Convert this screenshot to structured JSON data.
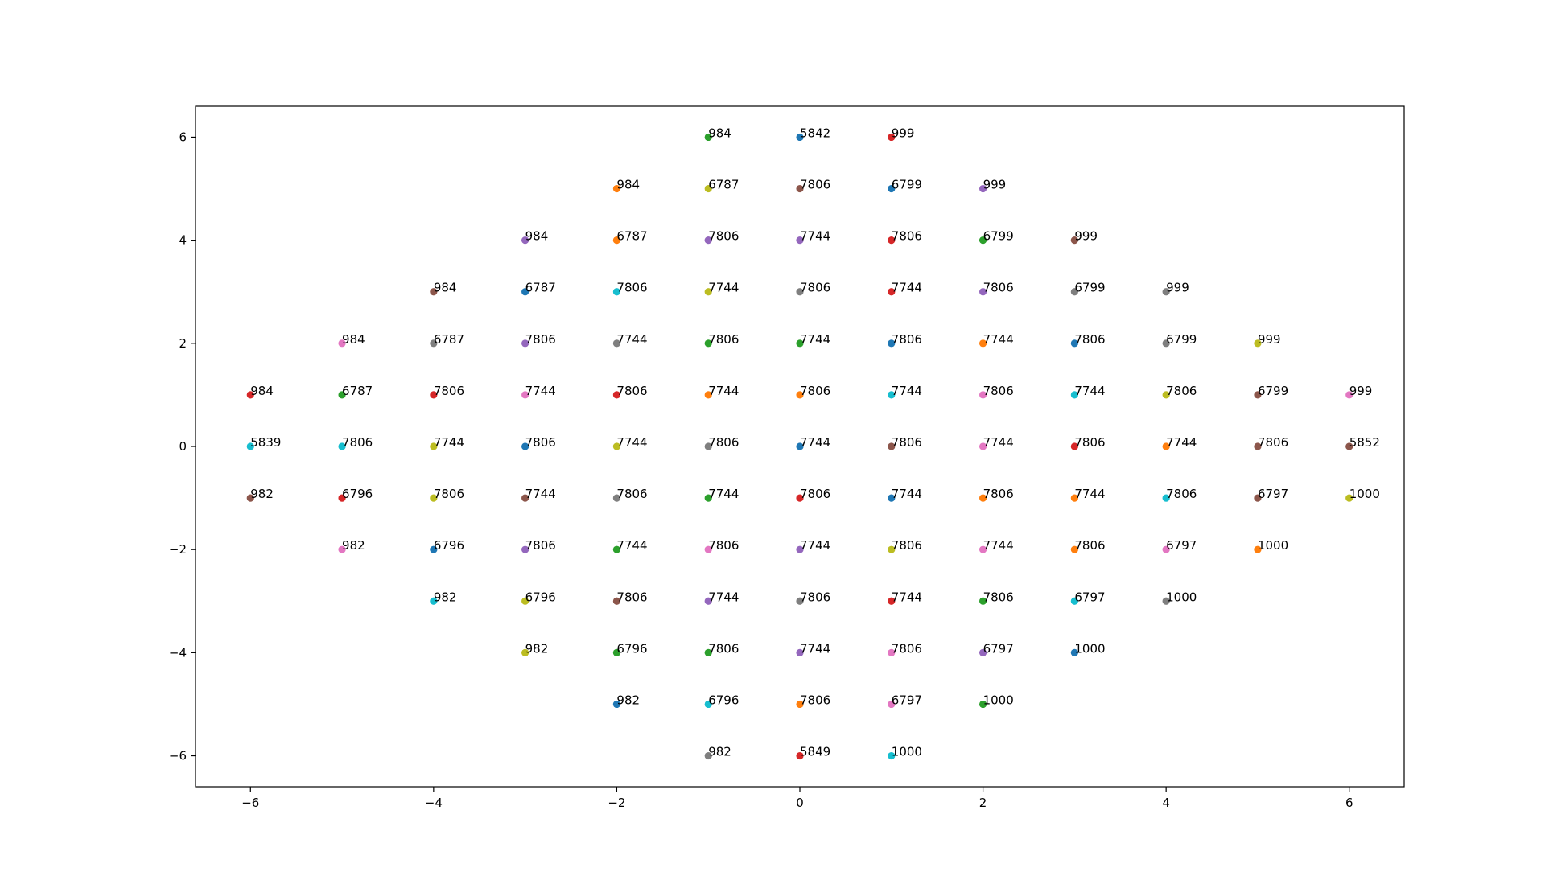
{
  "chart_data": {
    "type": "scatter",
    "title": "",
    "xlabel": "",
    "ylabel": "",
    "xlim": [
      -6.6,
      6.6
    ],
    "ylim": [
      -6.6,
      6.6
    ],
    "xticks": [
      -6,
      -4,
      -2,
      0,
      2,
      4,
      6
    ],
    "yticks": [
      -6,
      -4,
      -2,
      0,
      2,
      4,
      6
    ],
    "xtick_labels": [
      "−6",
      "−4",
      "−2",
      "0",
      "2",
      "4",
      "6"
    ],
    "ytick_labels": [
      "−6",
      "−4",
      "−2",
      "0",
      "2",
      "4",
      "6"
    ],
    "grid": false,
    "legend": "none",
    "palette": [
      "#1f77b4",
      "#ff7f0e",
      "#2ca02c",
      "#d62728",
      "#9467bd",
      "#8c564b",
      "#e377c2",
      "#7f7f7f",
      "#bcbd22",
      "#17becf"
    ],
    "points": [
      {
        "x": -6,
        "y": 1,
        "label": "984",
        "color": "#d62728"
      },
      {
        "x": -6,
        "y": 0,
        "label": "5839",
        "color": "#17becf"
      },
      {
        "x": -6,
        "y": -1,
        "label": "982",
        "color": "#8c564b"
      },
      {
        "x": -5,
        "y": 2,
        "label": "984",
        "color": "#e377c2"
      },
      {
        "x": -5,
        "y": 1,
        "label": "6787",
        "color": "#2ca02c"
      },
      {
        "x": -5,
        "y": 0,
        "label": "7806",
        "color": "#17becf"
      },
      {
        "x": -5,
        "y": -1,
        "label": "6796",
        "color": "#d62728"
      },
      {
        "x": -5,
        "y": -2,
        "label": "982",
        "color": "#e377c2"
      },
      {
        "x": -4,
        "y": 3,
        "label": "984",
        "color": "#8c564b"
      },
      {
        "x": -4,
        "y": 2,
        "label": "6787",
        "color": "#7f7f7f"
      },
      {
        "x": -4,
        "y": 1,
        "label": "7806",
        "color": "#d62728"
      },
      {
        "x": -4,
        "y": 0,
        "label": "7744",
        "color": "#bcbd22"
      },
      {
        "x": -4,
        "y": -1,
        "label": "7806",
        "color": "#bcbd22"
      },
      {
        "x": -4,
        "y": -2,
        "label": "6796",
        "color": "#1f77b4"
      },
      {
        "x": -4,
        "y": -3,
        "label": "982",
        "color": "#17becf"
      },
      {
        "x": -3,
        "y": 4,
        "label": "984",
        "color": "#9467bd"
      },
      {
        "x": -3,
        "y": 3,
        "label": "6787",
        "color": "#1f77b4"
      },
      {
        "x": -3,
        "y": 2,
        "label": "7806",
        "color": "#9467bd"
      },
      {
        "x": -3,
        "y": 1,
        "label": "7744",
        "color": "#e377c2"
      },
      {
        "x": -3,
        "y": 0,
        "label": "7806",
        "color": "#1f77b4"
      },
      {
        "x": -3,
        "y": -1,
        "label": "7744",
        "color": "#8c564b"
      },
      {
        "x": -3,
        "y": -2,
        "label": "7806",
        "color": "#9467bd"
      },
      {
        "x": -3,
        "y": -3,
        "label": "6796",
        "color": "#bcbd22"
      },
      {
        "x": -3,
        "y": -4,
        "label": "982",
        "color": "#bcbd22"
      },
      {
        "x": -2,
        "y": 5,
        "label": "984",
        "color": "#ff7f0e"
      },
      {
        "x": -2,
        "y": 4,
        "label": "6787",
        "color": "#ff7f0e"
      },
      {
        "x": -2,
        "y": 3,
        "label": "7806",
        "color": "#17becf"
      },
      {
        "x": -2,
        "y": 2,
        "label": "7744",
        "color": "#7f7f7f"
      },
      {
        "x": -2,
        "y": 1,
        "label": "7806",
        "color": "#d62728"
      },
      {
        "x": -2,
        "y": 0,
        "label": "7744",
        "color": "#bcbd22"
      },
      {
        "x": -2,
        "y": -1,
        "label": "7806",
        "color": "#7f7f7f"
      },
      {
        "x": -2,
        "y": -2,
        "label": "7744",
        "color": "#2ca02c"
      },
      {
        "x": -2,
        "y": -3,
        "label": "7806",
        "color": "#8c564b"
      },
      {
        "x": -2,
        "y": -4,
        "label": "6796",
        "color": "#2ca02c"
      },
      {
        "x": -2,
        "y": -5,
        "label": "982",
        "color": "#1f77b4"
      },
      {
        "x": -1,
        "y": 6,
        "label": "984",
        "color": "#2ca02c"
      },
      {
        "x": -1,
        "y": 5,
        "label": "6787",
        "color": "#bcbd22"
      },
      {
        "x": -1,
        "y": 4,
        "label": "7806",
        "color": "#9467bd"
      },
      {
        "x": -1,
        "y": 3,
        "label": "7744",
        "color": "#bcbd22"
      },
      {
        "x": -1,
        "y": 2,
        "label": "7806",
        "color": "#2ca02c"
      },
      {
        "x": -1,
        "y": 1,
        "label": "7744",
        "color": "#ff7f0e"
      },
      {
        "x": -1,
        "y": 0,
        "label": "7806",
        "color": "#7f7f7f"
      },
      {
        "x": -1,
        "y": -1,
        "label": "7744",
        "color": "#2ca02c"
      },
      {
        "x": -1,
        "y": -2,
        "label": "7806",
        "color": "#e377c2"
      },
      {
        "x": -1,
        "y": -3,
        "label": "7744",
        "color": "#9467bd"
      },
      {
        "x": -1,
        "y": -4,
        "label": "7806",
        "color": "#2ca02c"
      },
      {
        "x": -1,
        "y": -5,
        "label": "6796",
        "color": "#17becf"
      },
      {
        "x": -1,
        "y": -6,
        "label": "982",
        "color": "#7f7f7f"
      },
      {
        "x": 0,
        "y": 6,
        "label": "5842",
        "color": "#1f77b4"
      },
      {
        "x": 0,
        "y": 5,
        "label": "7806",
        "color": "#8c564b"
      },
      {
        "x": 0,
        "y": 4,
        "label": "7744",
        "color": "#9467bd"
      },
      {
        "x": 0,
        "y": 3,
        "label": "7806",
        "color": "#7f7f7f"
      },
      {
        "x": 0,
        "y": 2,
        "label": "7744",
        "color": "#2ca02c"
      },
      {
        "x": 0,
        "y": 1,
        "label": "7806",
        "color": "#ff7f0e"
      },
      {
        "x": 0,
        "y": 0,
        "label": "7744",
        "color": "#1f77b4"
      },
      {
        "x": 0,
        "y": -1,
        "label": "7806",
        "color": "#d62728"
      },
      {
        "x": 0,
        "y": -2,
        "label": "7744",
        "color": "#9467bd"
      },
      {
        "x": 0,
        "y": -3,
        "label": "7806",
        "color": "#7f7f7f"
      },
      {
        "x": 0,
        "y": -4,
        "label": "7744",
        "color": "#9467bd"
      },
      {
        "x": 0,
        "y": -5,
        "label": "7806",
        "color": "#ff7f0e"
      },
      {
        "x": 0,
        "y": -6,
        "label": "5849",
        "color": "#d62728"
      },
      {
        "x": 1,
        "y": 6,
        "label": "999",
        "color": "#d62728"
      },
      {
        "x": 1,
        "y": 5,
        "label": "6799",
        "color": "#1f77b4"
      },
      {
        "x": 1,
        "y": 4,
        "label": "7806",
        "color": "#d62728"
      },
      {
        "x": 1,
        "y": 3,
        "label": "7744",
        "color": "#d62728"
      },
      {
        "x": 1,
        "y": 2,
        "label": "7806",
        "color": "#1f77b4"
      },
      {
        "x": 1,
        "y": 1,
        "label": "7744",
        "color": "#17becf"
      },
      {
        "x": 1,
        "y": 0,
        "label": "7806",
        "color": "#8c564b"
      },
      {
        "x": 1,
        "y": -1,
        "label": "7744",
        "color": "#1f77b4"
      },
      {
        "x": 1,
        "y": -2,
        "label": "7806",
        "color": "#bcbd22"
      },
      {
        "x": 1,
        "y": -3,
        "label": "7744",
        "color": "#d62728"
      },
      {
        "x": 1,
        "y": -4,
        "label": "7806",
        "color": "#e377c2"
      },
      {
        "x": 1,
        "y": -5,
        "label": "6797",
        "color": "#e377c2"
      },
      {
        "x": 1,
        "y": -6,
        "label": "1000",
        "color": "#17becf"
      },
      {
        "x": 2,
        "y": 5,
        "label": "999",
        "color": "#9467bd"
      },
      {
        "x": 2,
        "y": 4,
        "label": "6799",
        "color": "#2ca02c"
      },
      {
        "x": 2,
        "y": 3,
        "label": "7806",
        "color": "#9467bd"
      },
      {
        "x": 2,
        "y": 2,
        "label": "7744",
        "color": "#ff7f0e"
      },
      {
        "x": 2,
        "y": 1,
        "label": "7806",
        "color": "#e377c2"
      },
      {
        "x": 2,
        "y": 0,
        "label": "7744",
        "color": "#e377c2"
      },
      {
        "x": 2,
        "y": -1,
        "label": "7806",
        "color": "#ff7f0e"
      },
      {
        "x": 2,
        "y": -2,
        "label": "7744",
        "color": "#e377c2"
      },
      {
        "x": 2,
        "y": -3,
        "label": "7806",
        "color": "#2ca02c"
      },
      {
        "x": 2,
        "y": -4,
        "label": "6797",
        "color": "#9467bd"
      },
      {
        "x": 2,
        "y": -5,
        "label": "1000",
        "color": "#2ca02c"
      },
      {
        "x": 3,
        "y": 4,
        "label": "999",
        "color": "#8c564b"
      },
      {
        "x": 3,
        "y": 3,
        "label": "6799",
        "color": "#7f7f7f"
      },
      {
        "x": 3,
        "y": 2,
        "label": "7806",
        "color": "#1f77b4"
      },
      {
        "x": 3,
        "y": 1,
        "label": "7744",
        "color": "#17becf"
      },
      {
        "x": 3,
        "y": 0,
        "label": "7806",
        "color": "#d62728"
      },
      {
        "x": 3,
        "y": -1,
        "label": "7744",
        "color": "#ff7f0e"
      },
      {
        "x": 3,
        "y": -2,
        "label": "7806",
        "color": "#ff7f0e"
      },
      {
        "x": 3,
        "y": -3,
        "label": "6797",
        "color": "#17becf"
      },
      {
        "x": 3,
        "y": -4,
        "label": "1000",
        "color": "#1f77b4"
      },
      {
        "x": 4,
        "y": 3,
        "label": "999",
        "color": "#7f7f7f"
      },
      {
        "x": 4,
        "y": 2,
        "label": "6799",
        "color": "#7f7f7f"
      },
      {
        "x": 4,
        "y": 1,
        "label": "7806",
        "color": "#bcbd22"
      },
      {
        "x": 4,
        "y": 0,
        "label": "7744",
        "color": "#ff7f0e"
      },
      {
        "x": 4,
        "y": -1,
        "label": "7806",
        "color": "#17becf"
      },
      {
        "x": 4,
        "y": -2,
        "label": "6797",
        "color": "#e377c2"
      },
      {
        "x": 4,
        "y": -3,
        "label": "1000",
        "color": "#7f7f7f"
      },
      {
        "x": 5,
        "y": 2,
        "label": "999",
        "color": "#bcbd22"
      },
      {
        "x": 5,
        "y": 1,
        "label": "6799",
        "color": "#8c564b"
      },
      {
        "x": 5,
        "y": 0,
        "label": "7806",
        "color": "#8c564b"
      },
      {
        "x": 5,
        "y": -1,
        "label": "6797",
        "color": "#8c564b"
      },
      {
        "x": 5,
        "y": -2,
        "label": "1000",
        "color": "#ff7f0e"
      },
      {
        "x": 6,
        "y": 1,
        "label": "999",
        "color": "#e377c2"
      },
      {
        "x": 6,
        "y": 0,
        "label": "5852",
        "color": "#8c564b"
      },
      {
        "x": 6,
        "y": -1,
        "label": "1000",
        "color": "#bcbd22"
      }
    ]
  }
}
